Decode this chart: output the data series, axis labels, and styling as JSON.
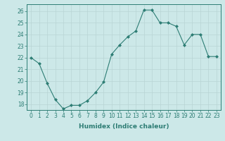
{
  "x": [
    0,
    1,
    2,
    3,
    4,
    5,
    6,
    7,
    8,
    9,
    10,
    11,
    12,
    13,
    14,
    15,
    16,
    17,
    18,
    19,
    20,
    21,
    22,
    23
  ],
  "y": [
    22.0,
    21.5,
    19.8,
    18.4,
    17.6,
    17.9,
    17.9,
    18.3,
    19.0,
    19.9,
    22.3,
    23.1,
    23.8,
    24.3,
    26.1,
    26.1,
    25.0,
    25.0,
    24.7,
    23.1,
    24.0,
    24.0,
    22.1,
    22.1
  ],
  "line_color": "#2d7d74",
  "marker_color": "#2d7d74",
  "bg_color": "#cce8e8",
  "grid_color": "#b8d4d4",
  "xlabel": "Humidex (Indice chaleur)",
  "ylim": [
    17.5,
    26.6
  ],
  "xlim": [
    -0.5,
    23.5
  ],
  "yticks": [
    18,
    19,
    20,
    21,
    22,
    23,
    24,
    25,
    26
  ],
  "xticks": [
    0,
    1,
    2,
    3,
    4,
    5,
    6,
    7,
    8,
    9,
    10,
    11,
    12,
    13,
    14,
    15,
    16,
    17,
    18,
    19,
    20,
    21,
    22,
    23
  ],
  "tick_fontsize": 5.5,
  "label_fontsize": 6.5
}
